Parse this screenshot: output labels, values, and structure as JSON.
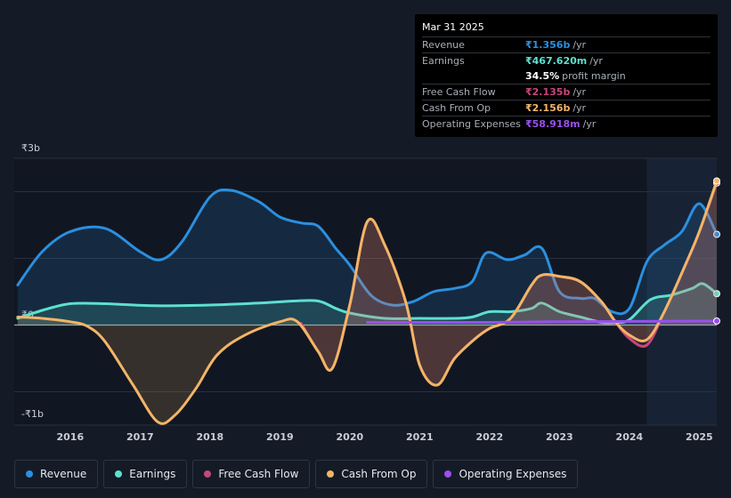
{
  "chart_data": {
    "type": "line",
    "currency": "₹",
    "y_labels": {
      "top": "₹3b",
      "zero": "₹0",
      "bottom": "-₹1b"
    },
    "ylim": [
      -1.5,
      2.5
    ],
    "xlim": [
      2015.2,
      2025.25
    ],
    "x_ticks": [
      {
        "value": 2016,
        "label": "2016"
      },
      {
        "value": 2017,
        "label": "2017"
      },
      {
        "value": 2018,
        "label": "2018"
      },
      {
        "value": 2019,
        "label": "2019"
      },
      {
        "value": 2020,
        "label": "2020"
      },
      {
        "value": 2021,
        "label": "2021"
      },
      {
        "value": 2022,
        "label": "2022"
      },
      {
        "value": 2023,
        "label": "2023"
      },
      {
        "value": 2024,
        "label": "2024"
      },
      {
        "value": 2025,
        "label": "2025"
      }
    ],
    "forecast_start": 2024.25,
    "series": [
      {
        "name": "Revenue",
        "color": "#2b8fe0",
        "fill": true,
        "points": [
          [
            2015.25,
            0.6
          ],
          [
            2015.6,
            1.1
          ],
          [
            2016.0,
            1.4
          ],
          [
            2016.5,
            1.45
          ],
          [
            2017.0,
            1.1
          ],
          [
            2017.3,
            0.98
          ],
          [
            2017.6,
            1.25
          ],
          [
            2018.0,
            1.92
          ],
          [
            2018.3,
            2.02
          ],
          [
            2018.7,
            1.85
          ],
          [
            2019.0,
            1.62
          ],
          [
            2019.3,
            1.53
          ],
          [
            2019.55,
            1.48
          ],
          [
            2019.8,
            1.15
          ],
          [
            2020.0,
            0.9
          ],
          [
            2020.3,
            0.45
          ],
          [
            2020.6,
            0.3
          ],
          [
            2020.9,
            0.35
          ],
          [
            2021.2,
            0.5
          ],
          [
            2021.5,
            0.55
          ],
          [
            2021.75,
            0.65
          ],
          [
            2021.95,
            1.08
          ],
          [
            2022.25,
            0.98
          ],
          [
            2022.5,
            1.05
          ],
          [
            2022.75,
            1.15
          ],
          [
            2023.0,
            0.5
          ],
          [
            2023.3,
            0.4
          ],
          [
            2023.5,
            0.4
          ],
          [
            2023.75,
            0.2
          ],
          [
            2024.0,
            0.25
          ],
          [
            2024.25,
            0.95
          ],
          [
            2024.5,
            1.2
          ],
          [
            2024.75,
            1.4
          ],
          [
            2025.0,
            1.82
          ],
          [
            2025.25,
            1.36
          ]
        ]
      },
      {
        "name": "Earnings",
        "color": "#5ee0cf",
        "fill": true,
        "points": [
          [
            2015.25,
            0.1
          ],
          [
            2015.6,
            0.22
          ],
          [
            2016.0,
            0.32
          ],
          [
            2016.5,
            0.32
          ],
          [
            2017.2,
            0.29
          ],
          [
            2018.0,
            0.3
          ],
          [
            2018.7,
            0.33
          ],
          [
            2019.2,
            0.36
          ],
          [
            2019.55,
            0.36
          ],
          [
            2019.8,
            0.25
          ],
          [
            2020.0,
            0.18
          ],
          [
            2020.5,
            0.1
          ],
          [
            2021.0,
            0.1
          ],
          [
            2021.5,
            0.1
          ],
          [
            2021.75,
            0.12
          ],
          [
            2022.0,
            0.2
          ],
          [
            2022.3,
            0.2
          ],
          [
            2022.6,
            0.25
          ],
          [
            2022.75,
            0.33
          ],
          [
            2023.0,
            0.2
          ],
          [
            2023.3,
            0.12
          ],
          [
            2023.6,
            0.04
          ],
          [
            2023.8,
            0.04
          ],
          [
            2024.0,
            0.08
          ],
          [
            2024.3,
            0.38
          ],
          [
            2024.6,
            0.45
          ],
          [
            2024.9,
            0.55
          ],
          [
            2025.05,
            0.62
          ],
          [
            2025.25,
            0.47
          ]
        ]
      },
      {
        "name": "Free Cash Flow",
        "color": "#c7467a",
        "fill": true,
        "points": [
          [
            2019.3,
            0.03
          ],
          [
            2019.55,
            -0.4
          ],
          [
            2019.75,
            -0.65
          ],
          [
            2020.0,
            0.3
          ],
          [
            2020.25,
            1.55
          ],
          [
            2020.5,
            1.2
          ],
          [
            2020.8,
            0.35
          ],
          [
            2021.0,
            -0.6
          ],
          [
            2021.25,
            -0.9
          ],
          [
            2021.5,
            -0.5
          ],
          [
            2021.8,
            -0.2
          ],
          [
            2022.0,
            -0.05
          ],
          [
            2022.3,
            0.1
          ],
          [
            2022.6,
            0.6
          ],
          [
            2022.75,
            0.75
          ],
          [
            2023.0,
            0.73
          ],
          [
            2023.3,
            0.65
          ],
          [
            2023.6,
            0.35
          ],
          [
            2023.8,
            0.05
          ],
          [
            2024.0,
            -0.2
          ],
          [
            2024.25,
            -0.3
          ],
          [
            2024.5,
            0.2
          ],
          [
            2024.8,
            0.9
          ],
          [
            2025.0,
            1.4
          ],
          [
            2025.25,
            2.13
          ]
        ]
      },
      {
        "name": "Cash From Op",
        "color": "#f2b566",
        "fill": true,
        "points": [
          [
            2015.25,
            0.12
          ],
          [
            2015.6,
            0.1
          ],
          [
            2016.0,
            0.05
          ],
          [
            2016.25,
            -0.02
          ],
          [
            2016.5,
            -0.25
          ],
          [
            2016.9,
            -0.9
          ],
          [
            2017.25,
            -1.45
          ],
          [
            2017.5,
            -1.35
          ],
          [
            2017.8,
            -0.95
          ],
          [
            2018.1,
            -0.45
          ],
          [
            2018.5,
            -0.15
          ],
          [
            2019.0,
            0.05
          ],
          [
            2019.25,
            0.05
          ],
          [
            2019.55,
            -0.4
          ],
          [
            2019.75,
            -0.65
          ],
          [
            2020.0,
            0.3
          ],
          [
            2020.25,
            1.55
          ],
          [
            2020.5,
            1.2
          ],
          [
            2020.8,
            0.35
          ],
          [
            2021.0,
            -0.6
          ],
          [
            2021.25,
            -0.9
          ],
          [
            2021.5,
            -0.5
          ],
          [
            2021.8,
            -0.2
          ],
          [
            2022.0,
            -0.05
          ],
          [
            2022.3,
            0.1
          ],
          [
            2022.6,
            0.6
          ],
          [
            2022.75,
            0.75
          ],
          [
            2023.0,
            0.73
          ],
          [
            2023.3,
            0.65
          ],
          [
            2023.6,
            0.35
          ],
          [
            2023.8,
            0.05
          ],
          [
            2024.0,
            -0.15
          ],
          [
            2024.25,
            -0.22
          ],
          [
            2024.5,
            0.2
          ],
          [
            2024.8,
            0.9
          ],
          [
            2025.0,
            1.4
          ],
          [
            2025.25,
            2.16
          ]
        ]
      },
      {
        "name": "Operating Expenses",
        "color": "#9a4ff0",
        "fill": false,
        "points": [
          [
            2020.25,
            0.04
          ],
          [
            2021.0,
            0.04
          ],
          [
            2022.0,
            0.04
          ],
          [
            2023.0,
            0.05
          ],
          [
            2024.0,
            0.055
          ],
          [
            2025.25,
            0.06
          ]
        ]
      }
    ]
  },
  "tooltip": {
    "date": "Mar 31 2025",
    "rows": [
      {
        "label": "Revenue",
        "value": "₹1.356b",
        "unit": "/yr",
        "color": "#2b8fe0"
      },
      {
        "label": "Earnings",
        "value": "₹467.620m",
        "unit": "/yr",
        "color": "#5ee0cf"
      },
      {
        "label": "Free Cash Flow",
        "value": "₹2.135b",
        "unit": "/yr",
        "color": "#c7467a"
      },
      {
        "label": "Cash From Op",
        "value": "₹2.156b",
        "unit": "/yr",
        "color": "#f2b566"
      },
      {
        "label": "Operating Expenses",
        "value": "₹58.918m",
        "unit": "/yr",
        "color": "#9a4ff0"
      }
    ],
    "profit_margin": {
      "value": "34.5%",
      "label": "profit margin"
    }
  },
  "legend": [
    {
      "label": "Revenue",
      "color": "#2b8fe0"
    },
    {
      "label": "Earnings",
      "color": "#5ee0cf"
    },
    {
      "label": "Free Cash Flow",
      "color": "#c7467a"
    },
    {
      "label": "Cash From Op",
      "color": "#f2b566"
    },
    {
      "label": "Operating Expenses",
      "color": "#9a4ff0"
    }
  ]
}
